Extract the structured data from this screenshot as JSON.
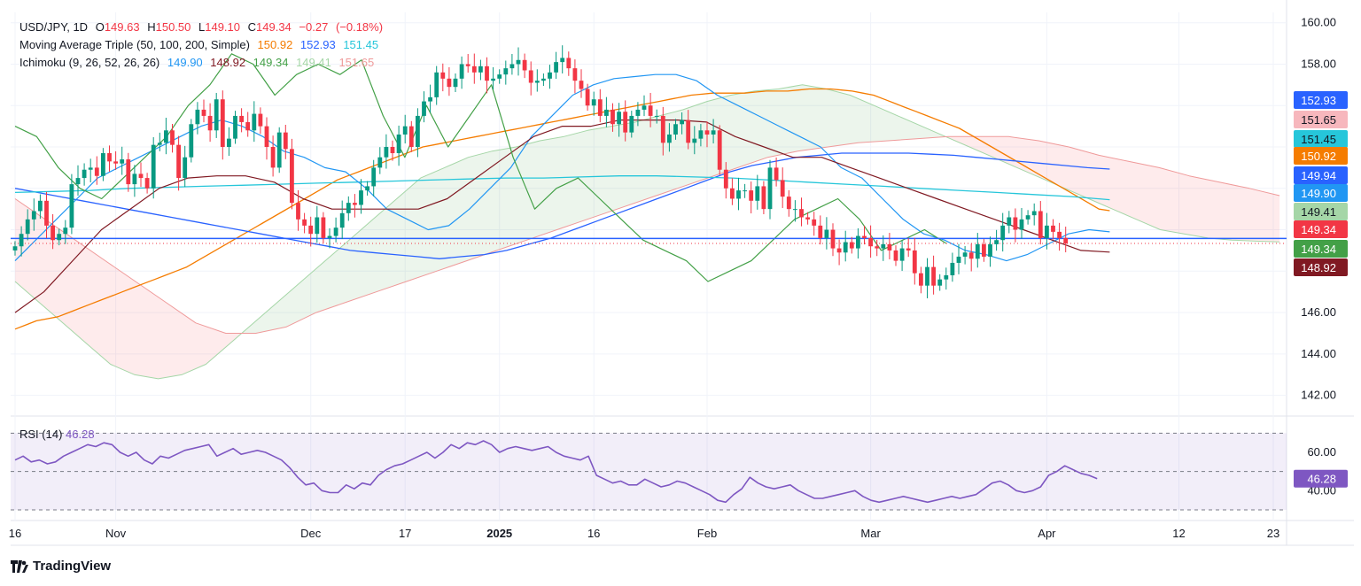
{
  "header": {
    "row1": {
      "label": "USD/JPY, 1D",
      "o_label": "O",
      "o": "149.63",
      "h_label": "H",
      "h": "150.50",
      "l_label": "L",
      "l": "149.10",
      "c_label": "C",
      "c": "149.34",
      "chg": "−0.27",
      "chg_pct": "(−0.18%)"
    },
    "row2": {
      "label": "Moving Average Triple (50, 100, 200, Simple)",
      "v1": "150.92",
      "v2": "152.93",
      "v3": "151.45"
    },
    "row3": {
      "label": "Ichimoku (9, 26, 52, 26, 26)",
      "v1": "149.90",
      "v2": "148.92",
      "v3": "149.34",
      "v4": "149.41",
      "v5": "151.65"
    }
  },
  "rsi_legend": {
    "label": "RSI (14)",
    "value": "46.28"
  },
  "brand": {
    "name": "TradingView"
  },
  "colors": {
    "up": "#089981",
    "down": "#f23645",
    "ma50": "#f57c00",
    "ma100": "#2962ff",
    "ma200": "#26c6da",
    "tenkan": "#2196f3",
    "kijun": "#801922",
    "chikou": "#43a047",
    "spanA": "#a5d6a7",
    "spanB": "#ef9a9a",
    "rsi": "#7e57c2",
    "hline": "#2962ff"
  },
  "chart_data": [
    {
      "type": "candlestick",
      "title": "USD/JPY, 1D",
      "ylim": [
        141.0,
        160.5
      ],
      "y_ticks": [
        "160.00",
        "158.00",
        "146.00",
        "144.00",
        "142.00"
      ],
      "x_ticks": [
        "16",
        "Nov",
        "Dec",
        "17",
        "2025",
        "16",
        "Feb",
        "Mar",
        "Apr",
        "12",
        "23"
      ],
      "x_tick_index": [
        0,
        16,
        47,
        62,
        77,
        92,
        110,
        136,
        164,
        185,
        200
      ],
      "horizontal_line": 149.34,
      "last_close": 149.34,
      "price_labels": [
        {
          "value": "152.93",
          "series": "SMA 100"
        },
        {
          "value": "151.65",
          "series": "Ichimoku Lead 2"
        },
        {
          "value": "151.45",
          "series": "SMA 200"
        },
        {
          "value": "150.92",
          "series": "SMA 50"
        },
        {
          "value": "149.94",
          "series": "Ichimoku"
        },
        {
          "value": "149.90",
          "series": "Ichimoku Conversion"
        },
        {
          "value": "149.41",
          "series": "Ichimoku Lead 1"
        },
        {
          "value": "149.34",
          "series": "Last"
        },
        {
          "value": "149.34",
          "series": "Ichimoku Lagging"
        },
        {
          "value": "148.92",
          "series": "Ichimoku Base"
        }
      ],
      "closes": [
        149.2,
        149.8,
        150.5,
        150.9,
        151.4,
        150.2,
        149.5,
        149.8,
        150.1,
        152.2,
        152.5,
        152.9,
        153.0,
        152.6,
        153.7,
        153.3,
        153.2,
        153.4,
        152.2,
        152.7,
        152.5,
        152.0,
        154.1,
        154.2,
        154.8,
        154.1,
        152.5,
        153.5,
        155.1,
        155.8,
        155.5,
        154.8,
        156.3,
        154.0,
        154.4,
        155.5,
        155.2,
        154.8,
        155.6,
        155.0,
        154.0,
        153.0,
        154.7,
        153.9,
        151.3,
        150.5,
        150.2,
        149.8,
        150.6,
        149.6,
        149.7,
        150.1,
        150.8,
        151.3,
        151.2,
        151.9,
        152.1,
        153.0,
        153.5,
        154.0,
        153.7,
        154.6,
        155.0,
        154.0,
        155.5,
        156.2,
        156.4,
        157.6,
        157.3,
        156.9,
        157.3,
        158.0,
        157.9,
        157.6,
        157.9,
        157.2,
        157.3,
        157.5,
        157.8,
        158.0,
        158.2,
        157.7,
        157.1,
        157.2,
        157.3,
        157.6,
        158.1,
        158.3,
        157.8,
        157.2,
        156.8,
        156.0,
        156.3,
        155.5,
        155.8,
        155.1,
        155.7,
        154.7,
        155.5,
        155.8,
        156.0,
        155.5,
        155.5,
        154.2,
        154.6,
        155.1,
        155.3,
        154.2,
        154.4,
        154.8,
        154.6,
        154.8,
        152.9,
        152.0,
        151.5,
        151.9,
        151.9,
        151.4,
        152.1,
        151.0,
        153.0,
        152.4,
        151.6,
        151.0,
        151.0,
        150.6,
        150.5,
        150.2,
        149.6,
        150.0,
        149.1,
        148.9,
        149.4,
        149.1,
        149.7,
        149.6,
        149.2,
        149.1,
        149.3,
        149.0,
        148.5,
        149.1,
        149.0,
        147.9,
        147.3,
        148.2,
        147.3,
        147.6,
        147.8,
        148.4,
        148.7,
        148.9,
        148.6,
        149.3,
        148.7,
        149.3,
        149.5,
        150.2,
        150.6,
        150.0,
        150.5,
        150.7,
        150.9,
        149.6,
        150.2,
        149.9,
        149.6,
        149.34
      ],
      "rsi": [
        56,
        58,
        55,
        56,
        54,
        55,
        58,
        60,
        62,
        64,
        63,
        65,
        64,
        60,
        58,
        60,
        56,
        54,
        58,
        57,
        59,
        61,
        62,
        63,
        64,
        58,
        60,
        62,
        59,
        60,
        61,
        60,
        58,
        56,
        52,
        47,
        43,
        44,
        40,
        39,
        39,
        43,
        41,
        44,
        43,
        48,
        51,
        53,
        54,
        56,
        58,
        60,
        57,
        60,
        64,
        62,
        65,
        64,
        66,
        64,
        60,
        62,
        63,
        62,
        61,
        62,
        63,
        60,
        58,
        57,
        56,
        58,
        48,
        46,
        44,
        45,
        43,
        43,
        46,
        44,
        42,
        43,
        45,
        44,
        42,
        40,
        38,
        35,
        34,
        38,
        41,
        47,
        44,
        42,
        41,
        42,
        43,
        40,
        38,
        36,
        36,
        37,
        38,
        39,
        40,
        37,
        35,
        34,
        35,
        36,
        37,
        36,
        35,
        34,
        35,
        36,
        37,
        36,
        37,
        38,
        41,
        44,
        45,
        43,
        40,
        39,
        40,
        42,
        48,
        50,
        53,
        51,
        49,
        48,
        46.28
      ],
      "sma50": [
        145.2,
        145.4,
        145.6,
        145.7,
        145.8,
        146.0,
        146.2,
        146.4,
        146.6,
        146.8,
        147.0,
        147.2,
        147.4,
        147.6,
        147.8,
        148.0,
        148.2,
        148.5,
        148.8,
        149.1,
        149.4,
        149.7,
        150.0,
        150.3,
        150.6,
        150.9,
        151.2,
        151.5,
        151.8,
        152.1,
        152.4,
        152.6,
        152.8,
        153.0,
        153.2,
        153.4,
        153.6,
        153.8,
        154.0,
        154.1,
        154.2,
        154.3,
        154.4,
        154.5,
        154.6,
        154.7,
        154.8,
        154.9,
        155.0,
        155.1,
        155.2,
        155.3,
        155.4,
        155.5,
        155.6,
        155.7,
        155.8,
        155.9,
        156.0,
        156.1,
        156.2,
        156.3,
        156.4,
        156.5,
        156.55,
        156.6,
        156.6,
        156.6,
        156.6,
        156.65,
        156.7,
        156.7,
        156.7,
        156.75,
        156.8,
        156.8,
        156.8,
        156.75,
        156.7,
        156.6,
        156.5,
        156.3,
        156.1,
        155.9,
        155.7,
        155.5,
        155.3,
        155.1,
        154.9,
        154.6,
        154.3,
        154.0,
        153.7,
        153.4,
        153.1,
        152.8,
        152.5,
        152.2,
        151.9,
        151.6,
        151.3,
        151.0,
        150.92
      ],
      "sma100": [
        152.0,
        151.8,
        151.6,
        151.4,
        151.2,
        151.0,
        150.8,
        150.6,
        150.4,
        150.2,
        150.0,
        149.8,
        149.6,
        149.4,
        149.2,
        149.0,
        148.9,
        148.8,
        148.7,
        148.6,
        148.7,
        148.8,
        149.0,
        149.3,
        149.6,
        150.0,
        150.4,
        150.8,
        151.2,
        151.6,
        152.0,
        152.4,
        152.8,
        153.1,
        153.3,
        153.5,
        153.6,
        153.7,
        153.7,
        153.7,
        153.7,
        153.65,
        153.6,
        153.5,
        153.4,
        153.3,
        153.2,
        153.1,
        153.0,
        152.93
      ],
      "sma200": [
        151.8,
        151.85,
        151.9,
        152.0,
        152.05,
        152.1,
        152.15,
        152.2,
        152.25,
        152.3,
        152.35,
        152.4,
        152.45,
        152.5,
        152.5,
        152.55,
        152.6,
        152.6,
        152.55,
        152.5,
        152.4,
        152.3,
        152.2,
        152.1,
        152.0,
        151.9,
        151.8,
        151.7,
        151.6,
        151.45
      ],
      "tenkan": [
        148.5,
        149.5,
        150.5,
        151.5,
        152.5,
        153.0,
        153.5,
        154.0,
        154.5,
        155.0,
        155.3,
        155.0,
        154.5,
        153.8,
        153.5,
        153.0,
        152.8,
        152.0,
        151.0,
        150.5,
        150.0,
        150.2,
        151.0,
        152.0,
        153.0,
        154.5,
        155.5,
        156.5,
        157.0,
        157.3,
        157.4,
        157.5,
        157.5,
        157.2,
        156.5,
        156.0,
        155.5,
        155.0,
        154.5,
        154.0,
        153.0,
        152.5,
        151.5,
        150.5,
        149.8,
        149.5,
        149.0,
        148.8,
        148.5,
        148.8,
        149.3,
        149.8,
        150.0,
        149.9
      ],
      "kijun": [
        146.0,
        147.0,
        148.5,
        150.0,
        151.0,
        152.0,
        152.5,
        152.6,
        152.6,
        152.3,
        151.5,
        151.0,
        151.0,
        151.0,
        151.0,
        151.5,
        152.5,
        153.5,
        154.5,
        155.0,
        155.0,
        155.3,
        155.3,
        155.3,
        155.2,
        154.5,
        154.0,
        153.5,
        153.5,
        153.0,
        152.5,
        152.0,
        151.5,
        151.0,
        150.5,
        150.0,
        149.5,
        149.0,
        148.92
      ],
      "span_a": [
        147.5,
        146.5,
        145.5,
        144.5,
        143.5,
        143.0,
        142.8,
        143.0,
        143.5,
        144.5,
        145.5,
        146.5,
        147.5,
        148.5,
        149.5,
        150.5,
        151.5,
        152.5,
        153.0,
        153.5,
        153.8,
        154.0,
        154.3,
        154.5,
        154.8,
        155.0,
        155.2,
        155.5,
        155.8,
        156.2,
        156.5,
        156.7,
        156.8,
        157.0,
        156.8,
        156.5,
        156.0,
        155.5,
        155.0,
        154.5,
        154.0,
        153.5,
        153.0,
        152.5,
        152.0,
        151.5,
        151.0,
        150.5,
        150.0,
        149.8,
        149.6,
        149.5,
        149.45,
        149.41
      ],
      "span_b": [
        151.5,
        150.5,
        149.5,
        148.5,
        147.5,
        146.5,
        145.5,
        145.0,
        145.0,
        145.3,
        146.0,
        146.5,
        147.0,
        147.5,
        148.0,
        148.5,
        149.0,
        149.5,
        150.0,
        150.5,
        151.0,
        151.5,
        152.0,
        152.5,
        153.0,
        153.5,
        153.8,
        154.0,
        154.2,
        154.3,
        154.4,
        154.5,
        154.5,
        154.5,
        154.3,
        154.0,
        153.6,
        153.3,
        153.0,
        152.6,
        152.3,
        152.0,
        151.65
      ],
      "chikou": [
        155.0,
        154.5,
        153.0,
        152.0,
        151.5,
        152.5,
        153.5,
        154.5,
        156.0,
        157.0,
        158.5,
        158.0,
        156.5,
        157.5,
        158.0,
        157.5,
        158.2,
        155.5,
        153.5,
        156.0,
        154.0,
        155.5,
        157.0,
        153.5,
        151.0,
        152.0,
        152.5,
        151.5,
        150.5,
        149.5,
        149.0,
        148.5,
        147.5,
        148.0,
        148.5,
        149.5,
        150.5,
        151.0,
        151.5,
        150.5,
        149.0,
        149.5,
        150.0,
        149.34
      ]
    },
    {
      "type": "line",
      "title": "RSI (14)",
      "ylim": [
        30,
        72
      ],
      "y_ticks": [
        "60.00",
        "40.00"
      ],
      "levels": [
        70,
        50,
        30
      ],
      "last": 46.28
    }
  ]
}
